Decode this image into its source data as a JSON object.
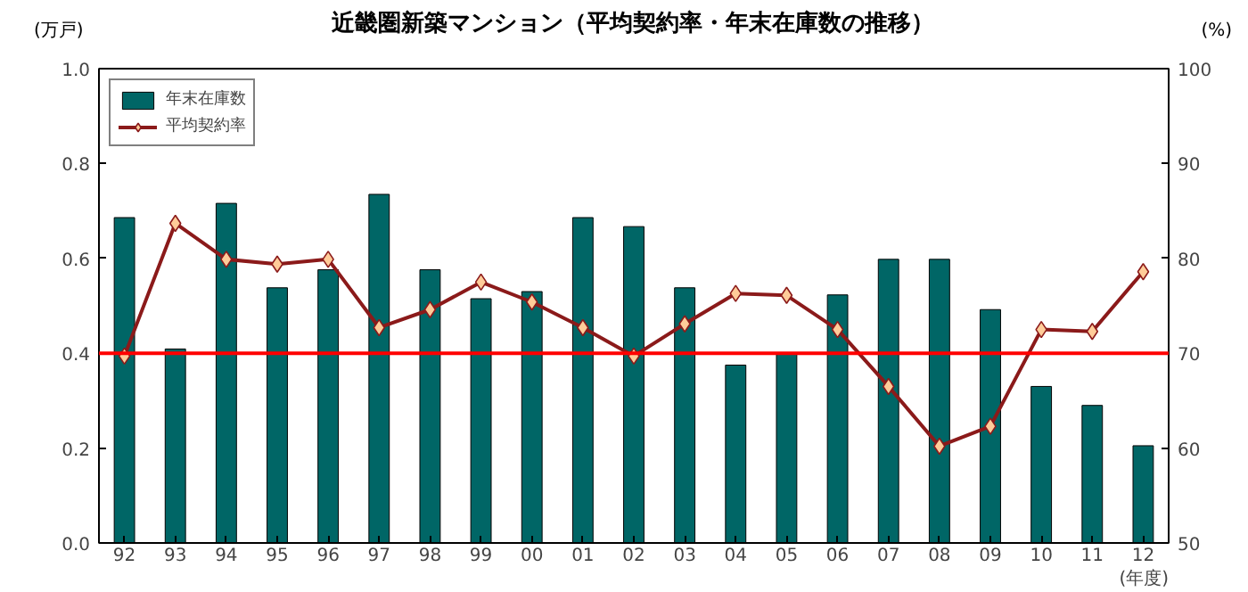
{
  "chart_data": {
    "type": "bar",
    "title": "近畿圏新築マンション（平均契約率・年末在庫数の推移）",
    "xlabel": "(年度)",
    "ylabel": "(万戸)",
    "y2label": "(%)",
    "categories": [
      "92",
      "93",
      "94",
      "95",
      "96",
      "97",
      "98",
      "99",
      "00",
      "01",
      "02",
      "03",
      "04",
      "05",
      "06",
      "07",
      "08",
      "09",
      "10",
      "11",
      "12"
    ],
    "series": [
      {
        "name": "年末在庫数",
        "color": "#006666",
        "values": [
          0.686,
          0.409,
          0.716,
          0.538,
          0.576,
          0.735,
          0.576,
          0.515,
          0.53,
          0.686,
          0.667,
          0.538,
          0.375,
          0.4,
          0.523,
          0.598,
          0.598,
          0.492,
          0.33,
          0.29,
          0.205
        ]
      },
      {
        "name": "平均契約率",
        "type": "line",
        "axis": "y2",
        "color": "#8b1a1a",
        "marker": "diamond",
        "values": [
          69.7,
          83.7,
          79.9,
          79.4,
          79.9,
          72.7,
          74.6,
          77.5,
          75.4,
          72.7,
          69.7,
          73.1,
          76.3,
          76.1,
          72.5,
          66.5,
          60.2,
          62.3,
          72.5,
          72.3,
          78.6
        ]
      }
    ],
    "ylim": [
      0,
      1
    ],
    "yticks": [
      {
        "value": 0,
        "label": "0.0"
      },
      {
        "value": 0.2,
        "label": "0.2"
      },
      {
        "value": 0.4,
        "label": "0.4"
      },
      {
        "value": 0.6,
        "label": "0.6"
      },
      {
        "value": 0.8,
        "label": "0.8"
      },
      {
        "value": 1,
        "label": "1.0"
      }
    ],
    "y2lim": [
      50,
      100
    ],
    "y2ticks": [
      50,
      60,
      70,
      80,
      90,
      100
    ],
    "ref_lines": [
      {
        "axis": "y2",
        "value": 70,
        "color": "#ff0000"
      }
    ],
    "legend": "top left",
    "grid": false
  }
}
